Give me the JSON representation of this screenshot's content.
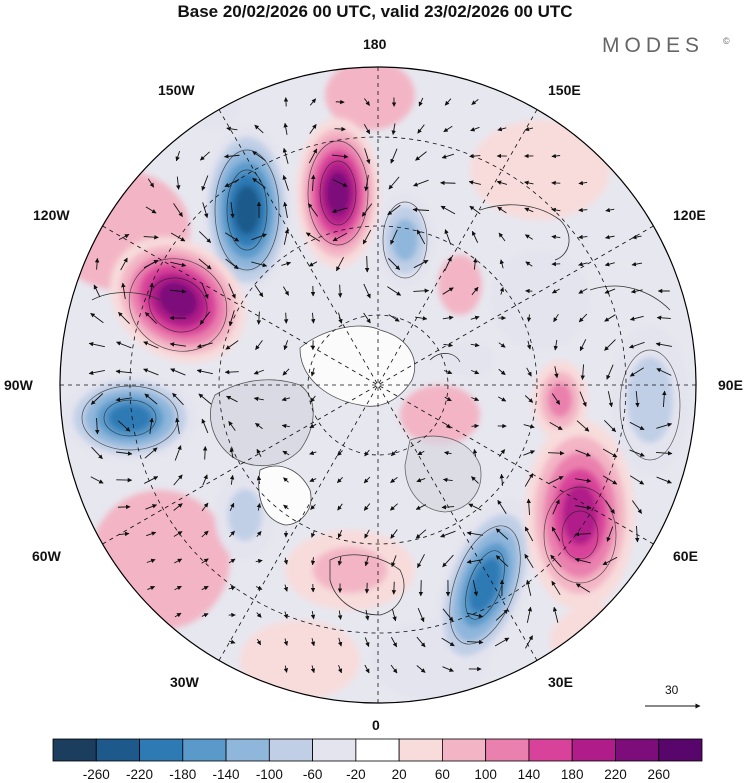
{
  "title": "Base 20/02/2026 00 UTC, valid 23/02/2026 00 UTC",
  "brand": "MODES",
  "brand_mark": "©",
  "longitude_labels": {
    "lon_180": "180",
    "lon_150w": "150W",
    "lon_150e": "150E",
    "lon_120w": "120W",
    "lon_120e": "120E",
    "lon_90w": "90W",
    "lon_90e": "90E",
    "lon_60w": "60W",
    "lon_60e": "60E",
    "lon_30w": "30W",
    "lon_30e": "30E",
    "lon_0": "0"
  },
  "reference_vector": {
    "label": "30"
  },
  "colorbar": {
    "ticks": [
      "-260",
      "-220",
      "-180",
      "-140",
      "-100",
      "-60",
      "-20",
      "20",
      "60",
      "100",
      "140",
      "180",
      "220",
      "260"
    ],
    "colors": [
      "#1b3d5e",
      "#1d5a8b",
      "#2e7ab5",
      "#5a9acb",
      "#8fb6db",
      "#c0cfe6",
      "#e4e4ef",
      "#ffffff",
      "#f8dcdc",
      "#f3b5c5",
      "#ea80ae",
      "#d9429a",
      "#b01c89",
      "#7d0d7a",
      "#58066b"
    ]
  },
  "anomaly_centers": [
    {
      "name": "anomaly-low-gulf-of-alaska",
      "value": -260
    },
    {
      "name": "anomaly-high-east-siberian-sea",
      "value": 240
    },
    {
      "name": "anomaly-high-canada",
      "value": 260
    },
    {
      "name": "anomaly-low-hudson-bay",
      "value": -220
    },
    {
      "name": "anomaly-low-east-siberia",
      "value": -140
    },
    {
      "name": "anomaly-low-north-atlantic",
      "value": -100
    },
    {
      "name": "anomaly-low-europe",
      "value": -220
    },
    {
      "name": "anomaly-high-central-asia",
      "value": 200
    },
    {
      "name": "anomaly-low-east-asia",
      "value": -100
    },
    {
      "name": "anomaly-high-greenland",
      "value": 100
    },
    {
      "name": "anomaly-high-ural",
      "value": 140
    }
  ]
}
